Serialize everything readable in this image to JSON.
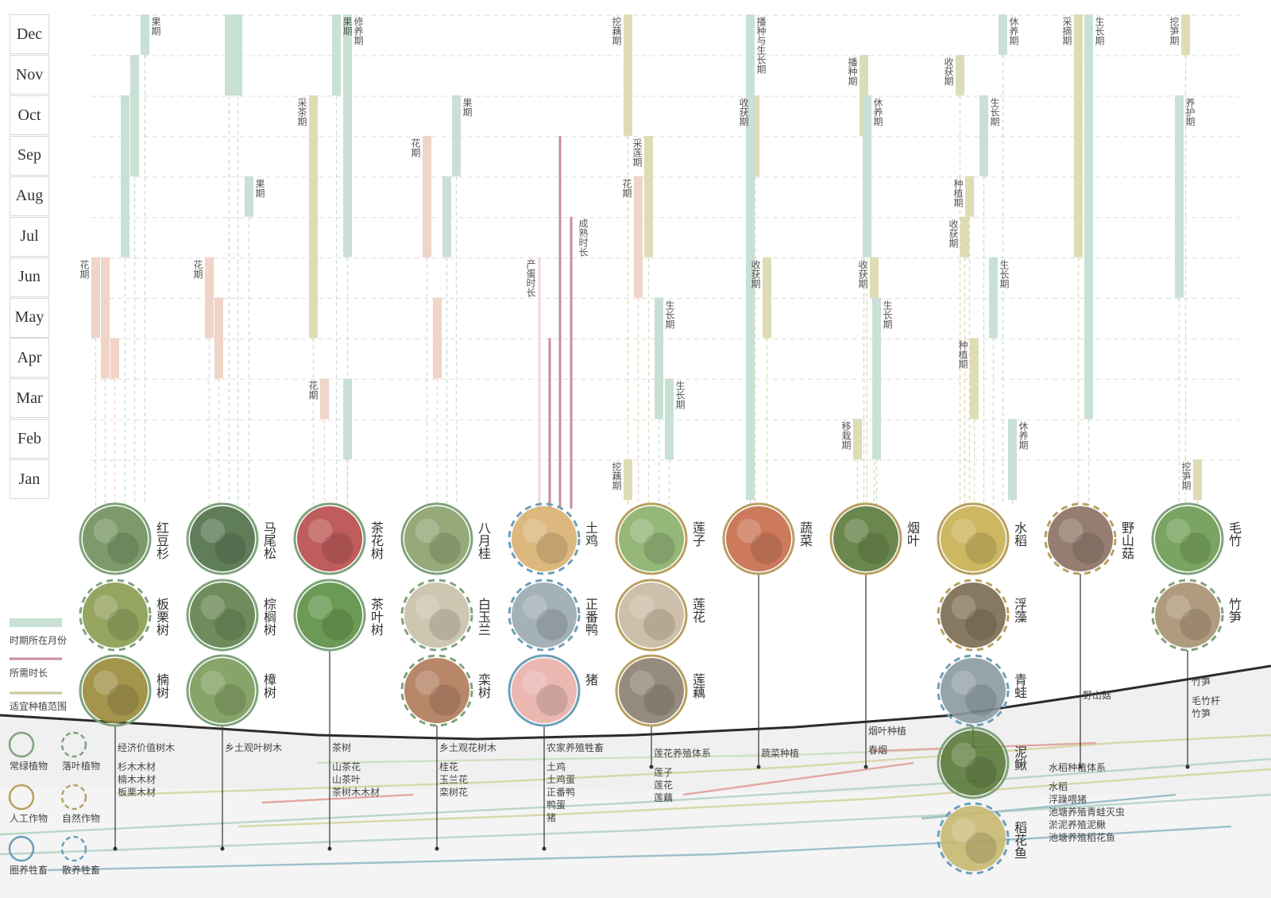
{
  "months": [
    "Jan",
    "Feb",
    "Mar",
    "Apr",
    "May",
    "Jun",
    "Jul",
    "Aug",
    "Sep",
    "Oct",
    "Nov",
    "Dec"
  ],
  "colors": {
    "green": "#c9e0d4",
    "pink": "#f0d4c8",
    "olive": "#dedcb4",
    "rose": "#c98e9a",
    "gridline": "#dddddd",
    "evergreen": "#7fa37c",
    "artificial": "#b8a060",
    "livestock": "#6d9fb8",
    "ground": "#2e2a2a"
  },
  "columns": [
    {
      "id": "col1",
      "bars": [
        {
          "s": 6.0,
          "e": 4.0,
          "c": "pink",
          "lab": "花期"
        },
        {
          "s": 6.0,
          "e": 3.0,
          "c": "pink"
        },
        {
          "s": 4.0,
          "e": 3.0,
          "c": "pink"
        },
        {
          "s": 10.0,
          "e": 6.0,
          "c": "green"
        },
        {
          "s": 11.0,
          "e": 8.0,
          "c": "green"
        },
        {
          "s": 12.0,
          "e": 11.0,
          "c": "green",
          "lab": "果期"
        }
      ],
      "circles": [
        {
          "name": "红豆杉",
          "kind": "evergreen",
          "color": "#6f8f5a"
        },
        {
          "name": "板栗树",
          "kind": "deciduous",
          "color": "#8a9a4e"
        },
        {
          "name": "楠树",
          "kind": "evergreen",
          "color": "#9a8a3a"
        }
      ],
      "notes": [
        "经济价值树木",
        "杉木木材",
        "楠木木材",
        "板栗木材"
      ]
    },
    {
      "id": "col2",
      "bars": [
        {
          "s": 6.0,
          "e": 4.0,
          "c": "pink",
          "lab": "花期"
        },
        {
          "s": 5.0,
          "e": 3.0,
          "c": "pink"
        },
        {
          "s": 12.0,
          "e": 10.0,
          "c": "green"
        },
        {
          "s": 12.0,
          "e": 10.0,
          "c": "green"
        },
        {
          "s": 8.0,
          "e": 7.0,
          "c": "green",
          "lab": "果期"
        }
      ],
      "circles": [
        {
          "name": "马尾松",
          "kind": "evergreen",
          "color": "#4f6f48"
        },
        {
          "name": "棕榈树",
          "kind": "evergreen",
          "color": "#5f7f4a"
        },
        {
          "name": "樟树",
          "kind": "evergreen",
          "color": "#7a9a5a"
        }
      ],
      "notes": [
        "乡土观叶树木"
      ]
    },
    {
      "id": "col3",
      "bars": [
        {
          "s": 10.0,
          "e": 4.0,
          "c": "olive",
          "lab": "采茶期"
        },
        {
          "s": 3.0,
          "e": 2.0,
          "c": "pink",
          "lab": "花期"
        },
        {
          "s": 12.0,
          "e": 10.0,
          "c": "green",
          "lab": "果期"
        },
        {
          "s": 12.0,
          "e": 6.0,
          "c": "green",
          "lab": "修养期"
        },
        {
          "s": 3.0,
          "e": 1.0,
          "c": "green"
        }
      ],
      "circles": [
        {
          "name": "茶花树",
          "kind": "evergreen",
          "color": "#b84a4a"
        },
        {
          "name": "茶叶树",
          "kind": "evergreen",
          "color": "#5a8f40"
        }
      ],
      "notes": [
        "茶树",
        "山茶花",
        "山茶叶",
        "茶树木木材"
      ]
    },
    {
      "id": "col4",
      "bars": [
        {
          "s": 9.0,
          "e": 6.0,
          "c": "pink",
          "lab": "花期"
        },
        {
          "s": 5.0,
          "e": 3.0,
          "c": "pink"
        },
        {
          "s": 8.0,
          "e": 6.0,
          "c": "green"
        },
        {
          "s": 10.0,
          "e": 8.0,
          "c": "green",
          "lab": "果期"
        }
      ],
      "circles": [
        {
          "name": "八月桂",
          "kind": "evergreen",
          "color": "#8aa06a"
        },
        {
          "name": "白玉兰",
          "kind": "deciduous",
          "color": "#c8c0a8"
        },
        {
          "name": "栾树",
          "kind": "deciduous",
          "color": "#b07a5a"
        }
      ],
      "notes": [
        "乡土观花树木",
        "桂花",
        "玉兰花",
        "栾树花"
      ]
    },
    {
      "id": "col5",
      "lines": [
        {
          "h": 6.0,
          "c": "#eedad2",
          "w": 3,
          "lab": "产蛋时长"
        },
        {
          "h": 4.0,
          "c": "#c98e9a",
          "w": 3
        },
        {
          "h": 9.0,
          "c": "#c98e9a",
          "w": 3
        },
        {
          "h": 7.0,
          "c": "#c98e9a",
          "w": 3,
          "lab": "成熟时长"
        }
      ],
      "circles": [
        {
          "name": "土鸡",
          "kind": "freerange",
          "color": "#d8b070"
        },
        {
          "name": "正番鸭",
          "kind": "freerange",
          "color": "#9aa8b0"
        },
        {
          "name": "猪",
          "kind": "pen",
          "color": "#e8b0a8"
        }
      ],
      "notes": [
        "农家养殖牲畜",
        "土鸡",
        "土鸡蛋",
        "正番鸭",
        "鸭蛋",
        "猪"
      ]
    },
    {
      "id": "col6",
      "bars": [
        {
          "s": 12.0,
          "e": 9.0,
          "c": "olive",
          "lab": "挖藕期"
        },
        {
          "s": 1.0,
          "e": 0.0,
          "c": "olive",
          "lab": "挖藕期"
        },
        {
          "s": 8.0,
          "e": 5.0,
          "c": "pink",
          "lab": "花期"
        },
        {
          "s": 9.0,
          "e": 6.0,
          "c": "olive",
          "lab": "采莲期"
        },
        {
          "s": 5.0,
          "e": 2.0,
          "c": "green",
          "lab": "生长期"
        },
        {
          "s": 3.0,
          "e": 1.0,
          "c": "green",
          "lab": "生长期"
        }
      ],
      "circles": [
        {
          "name": "莲子",
          "kind": "artificial",
          "color": "#8ab06a"
        },
        {
          "name": "莲花",
          "kind": "artificial",
          "color": "#c8b8a0"
        },
        {
          "name": "莲藕",
          "kind": "artificial",
          "color": "#8a8070"
        }
      ],
      "notes": [
        "莲花养殖体系",
        "莲子",
        "莲花",
        "莲藕"
      ]
    },
    {
      "id": "col7",
      "bars": [
        {
          "s": 10.0,
          "e": 8.0,
          "c": "olive",
          "lab": "收获期"
        },
        {
          "s": 6.0,
          "e": 4.0,
          "c": "olive",
          "lab": "收获期"
        },
        {
          "s": 12.0,
          "e": 0.0,
          "c": "green",
          "lab": "播种与生长期"
        }
      ],
      "circles": [
        {
          "name": "蔬菜",
          "kind": "artificial",
          "color": "#c86a4a"
        }
      ],
      "notes": [
        "蔬菜种植"
      ]
    },
    {
      "id": "col8",
      "bars": [
        {
          "s": 11.0,
          "e": 9.0,
          "c": "olive",
          "lab": "播种期"
        },
        {
          "s": 6.0,
          "e": 5.0,
          "c": "olive",
          "lab": "收获期"
        },
        {
          "s": 2.0,
          "e": 1.0,
          "c": "olive",
          "lab": "移栽期"
        },
        {
          "s": 10.0,
          "e": 6.0,
          "c": "green",
          "lab": "休养期"
        },
        {
          "s": 5.0,
          "e": 1.0,
          "c": "green",
          "lab": "生长期"
        }
      ],
      "circles": [
        {
          "name": "烟叶",
          "kind": "artificial",
          "color": "#5a7a3a"
        }
      ],
      "notes": [
        "烟叶种植",
        "春烟"
      ]
    },
    {
      "id": "col9",
      "bars": [
        {
          "s": 11.0,
          "e": 10.0,
          "c": "olive",
          "lab": "收获期"
        },
        {
          "s": 8.0,
          "e": 7.0,
          "c": "olive",
          "lab": "种植期"
        },
        {
          "s": 7.0,
          "e": 6.0,
          "c": "olive",
          "lab": "收获期"
        },
        {
          "s": 4.0,
          "e": 2.0,
          "c": "olive",
          "lab": "种植期"
        },
        {
          "s": 10.0,
          "e": 8.0,
          "c": "green",
          "lab": "生长期"
        },
        {
          "s": 6.0,
          "e": 4.0,
          "c": "green",
          "lab": "生长期"
        },
        {
          "s": 12.0,
          "e": 11.0,
          "c": "green",
          "lab": "休养期"
        },
        {
          "s": 2.0,
          "e": 0.0,
          "c": "green",
          "lab": "休养期"
        }
      ],
      "circles": [
        {
          "name": "水稻",
          "kind": "artificial",
          "color": "#c8b050"
        },
        {
          "name": "浮藻",
          "kind": "natural",
          "color": "#7a6a50"
        },
        {
          "name": "青蛙",
          "kind": "freerange",
          "color": "#8a9aa0"
        },
        {
          "name": "泥鳅",
          "kind": "evergreen",
          "color": "#5a7a3a"
        },
        {
          "name": "稻花鱼",
          "kind": "freerange",
          "color": "#c8b870"
        }
      ],
      "notes": [
        "水稻种植体系",
        "水稻",
        "浮躁喂猪",
        "池塘养殖青蛙灭虫",
        "淤泥养殖泥鳅",
        "池塘养殖稻花鱼"
      ]
    },
    {
      "id": "col10",
      "bars": [
        {
          "s": 12.0,
          "e": 6.0,
          "c": "olive",
          "lab": "采摘期"
        },
        {
          "s": 12.0,
          "e": 2.0,
          "c": "green",
          "lab": "生长期"
        }
      ],
      "circles": [
        {
          "name": "野山菇",
          "kind": "natural",
          "color": "#8a7060"
        }
      ],
      "notes": [
        "野山菇"
      ]
    },
    {
      "id": "col11",
      "bars": [
        {
          "s": 12.0,
          "e": 11.0,
          "c": "olive",
          "lab": "挖笋期"
        },
        {
          "s": 1.0,
          "e": 0.0,
          "c": "olive",
          "lab": "挖笋期"
        },
        {
          "s": 10.0,
          "e": 5.0,
          "c": "green",
          "lab": "养护期"
        }
      ],
      "circles": [
        {
          "name": "毛竹",
          "kind": "evergreen",
          "color": "#6a9a50"
        },
        {
          "name": "竹笋",
          "kind": "deciduous",
          "color": "#a89070"
        }
      ],
      "notes": [
        "竹笋",
        "毛竹杆",
        "竹笋"
      ]
    }
  ],
  "legend": {
    "items": [
      {
        "label": "时期所在月份",
        "type": "bar"
      },
      {
        "label": "所需时长",
        "type": "line"
      },
      {
        "label": "适宜种植范围",
        "type": "range"
      }
    ],
    "shapes": [
      {
        "label": "常绿植物",
        "kind": "evergreen"
      },
      {
        "label": "落叶植物",
        "kind": "deciduous"
      },
      {
        "label": "人工作物",
        "kind": "artificial"
      },
      {
        "label": "自然作物",
        "kind": "natural"
      },
      {
        "label": "圈养牲畜",
        "kind": "pen"
      },
      {
        "label": "散养牲畜",
        "kind": "freerange"
      }
    ]
  }
}
